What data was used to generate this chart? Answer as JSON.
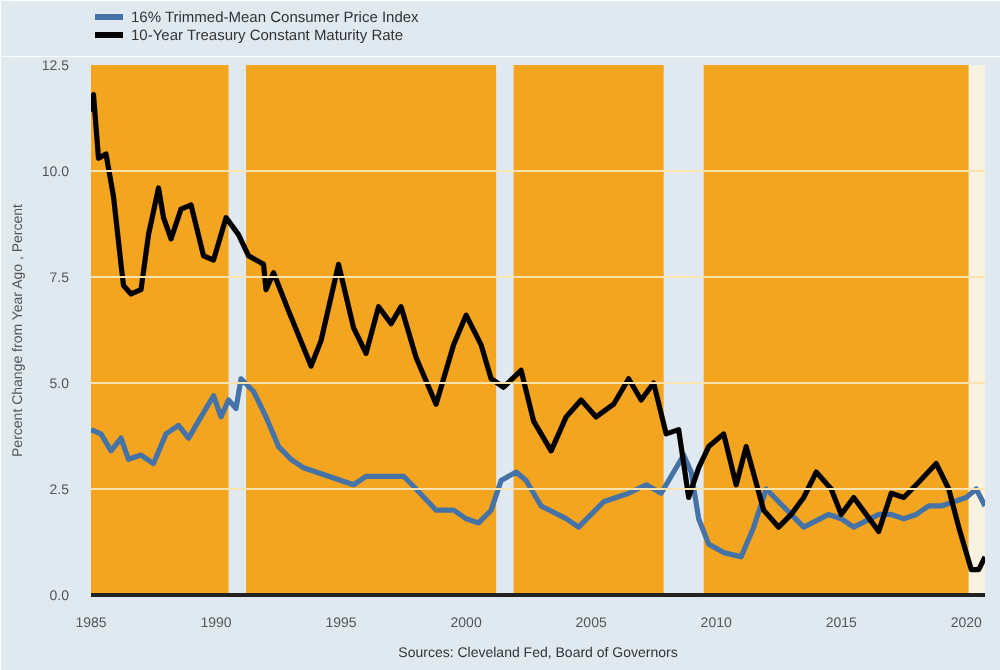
{
  "chart_data": {
    "type": "line",
    "ylabel": "Percent Change from Year Ago , Percent",
    "annotations": [
      "Sources: Cleveland Fed, Board of Governors"
    ],
    "xlim": [
      1985,
      2020.75
    ],
    "ylim": [
      0,
      12.5
    ],
    "xticks": [
      1985,
      1990,
      1995,
      2000,
      2005,
      2010,
      2015,
      2020
    ],
    "yticks": [
      {
        "value": 0,
        "label": "0.0"
      },
      {
        "value": 2.5,
        "label": "2.5"
      },
      {
        "value": 5,
        "label": "5.0"
      },
      {
        "value": 7.5,
        "label": "7.5"
      },
      {
        "value": 10,
        "label": "10.0"
      },
      {
        "value": 12.5,
        "label": "12.5"
      }
    ],
    "grid": "y",
    "legend": "top left",
    "bands": [
      {
        "axis": "x",
        "from": 1985,
        "to": 1990.5,
        "color": "#f4a51f"
      },
      {
        "axis": "x",
        "from": 1991.2,
        "to": 2001.2,
        "color": "#f4a51f"
      },
      {
        "axis": "x",
        "from": 2001.9,
        "to": 2007.9,
        "color": "#f4a51f"
      },
      {
        "axis": "x",
        "from": 2009.5,
        "to": 2020.1,
        "color": "#f4a51f"
      },
      {
        "axis": "x",
        "from": 2020.1,
        "to": 2020.75,
        "color": "#f8f3e0"
      }
    ],
    "series": [
      {
        "name": "16% Trimmed-Mean Consumer Price Index",
        "color": "#4572a7",
        "x": [
          1985.0,
          1985.4,
          1985.8,
          1986.2,
          1986.5,
          1987.0,
          1987.5,
          1988.0,
          1988.5,
          1988.9,
          1989.5,
          1989.9,
          1990.2,
          1990.5,
          1990.8,
          1991.0,
          1991.5,
          1992.0,
          1992.5,
          1993.0,
          1993.5,
          1994.5,
          1995.5,
          1996.0,
          1997.0,
          1997.5,
          1998.0,
          1998.8,
          1999.5,
          2000.0,
          2000.5,
          2001.0,
          2001.4,
          2002.0,
          2002.4,
          2003.0,
          2004.0,
          2004.5,
          2005.5,
          2006.5,
          2007.2,
          2007.8,
          2008.3,
          2008.7,
          2009.0,
          2009.3,
          2009.7,
          2010.3,
          2011.0,
          2011.5,
          2012.0,
          2012.5,
          2013.0,
          2013.5,
          2014.5,
          2015.0,
          2015.5,
          2016.5,
          2017.0,
          2017.5,
          2018.0,
          2018.5,
          2019.0,
          2019.5,
          2020.0,
          2020.4,
          2020.75
        ],
        "values": [
          3.9,
          3.8,
          3.4,
          3.7,
          3.2,
          3.3,
          3.1,
          3.8,
          4.0,
          3.7,
          4.3,
          4.7,
          4.2,
          4.6,
          4.4,
          5.1,
          4.8,
          4.2,
          3.5,
          3.2,
          3.0,
          2.8,
          2.6,
          2.8,
          2.8,
          2.8,
          2.5,
          2.0,
          2.0,
          1.8,
          1.7,
          2.0,
          2.7,
          2.9,
          2.7,
          2.1,
          1.8,
          1.6,
          2.2,
          2.4,
          2.6,
          2.4,
          2.9,
          3.3,
          2.9,
          1.8,
          1.2,
          1.0,
          0.9,
          1.6,
          2.5,
          2.2,
          1.9,
          1.6,
          1.9,
          1.8,
          1.6,
          1.9,
          1.9,
          1.8,
          1.9,
          2.1,
          2.1,
          2.2,
          2.3,
          2.5,
          2.1
        ]
      },
      {
        "name": "10-Year Treasury Constant Maturity Rate",
        "color": "#000000",
        "x": [
          1985.0,
          1985.1,
          1985.3,
          1985.6,
          1985.9,
          1986.2,
          1986.3,
          1986.6,
          1987.0,
          1987.3,
          1987.7,
          1987.9,
          1988.2,
          1988.6,
          1989.0,
          1989.5,
          1989.9,
          1990.4,
          1990.9,
          1991.3,
          1991.9,
          1992.0,
          1992.3,
          1992.9,
          1993.8,
          1994.2,
          1994.9,
          1995.5,
          1996.0,
          1996.5,
          1997.0,
          1997.4,
          1998.0,
          1998.8,
          1999.5,
          2000.0,
          2000.6,
          2001.0,
          2001.5,
          2002.2,
          2002.7,
          2003.4,
          2004.0,
          2004.6,
          2005.2,
          2005.9,
          2006.5,
          2007.0,
          2007.5,
          2008.0,
          2008.5,
          2008.9,
          2009.3,
          2009.7,
          2010.3,
          2010.8,
          2011.2,
          2011.9,
          2012.5,
          2013.0,
          2013.5,
          2014.0,
          2014.6,
          2015.0,
          2015.5,
          2016.5,
          2017.0,
          2017.5,
          2018.0,
          2018.8,
          2019.3,
          2019.7,
          2020.2,
          2020.5,
          2020.75
        ],
        "values": [
          11.4,
          11.8,
          10.3,
          10.4,
          9.4,
          7.8,
          7.3,
          7.1,
          7.2,
          8.5,
          9.6,
          8.9,
          8.4,
          9.1,
          9.2,
          8.0,
          7.9,
          8.9,
          8.5,
          8.0,
          7.8,
          7.2,
          7.6,
          6.7,
          5.4,
          6.0,
          7.8,
          6.3,
          5.7,
          6.8,
          6.4,
          6.8,
          5.6,
          4.5,
          5.9,
          6.6,
          5.9,
          5.1,
          4.9,
          5.3,
          4.1,
          3.4,
          4.2,
          4.6,
          4.2,
          4.5,
          5.1,
          4.6,
          5.0,
          3.8,
          3.9,
          2.3,
          3.0,
          3.5,
          3.8,
          2.6,
          3.5,
          2.0,
          1.6,
          1.9,
          2.3,
          2.9,
          2.5,
          1.9,
          2.3,
          1.5,
          2.4,
          2.3,
          2.6,
          3.1,
          2.5,
          1.6,
          0.6,
          0.6,
          0.9
        ]
      }
    ]
  }
}
